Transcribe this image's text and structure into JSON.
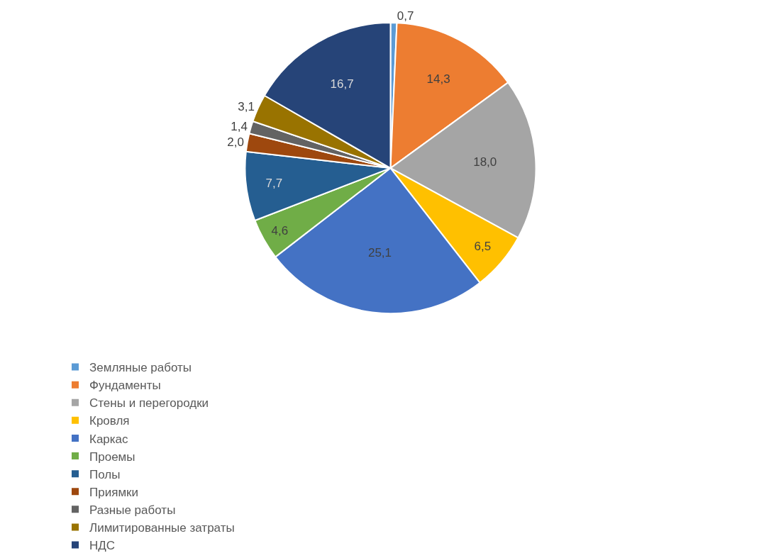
{
  "chart_data": {
    "type": "pie",
    "categories": [
      "Земляные работы",
      "Фундаменты",
      "Стены и перегородки",
      "Кровля",
      "Каркас",
      "Проемы",
      "Полы",
      "Приямки",
      "Разные работы",
      "Лимитированные затраты",
      "НДС"
    ],
    "values": [
      0.7,
      14.3,
      18.0,
      6.5,
      25.1,
      4.6,
      7.7,
      2.0,
      1.4,
      3.1,
      16.7
    ],
    "value_labels": [
      "0,7",
      "14,3",
      "18,0",
      "6,5",
      "25,1",
      "4,6",
      "7,7",
      "2,0",
      "1,4",
      "3,1",
      "16,7"
    ],
    "colors": [
      "#5b9bd5",
      "#ed7d31",
      "#a5a5a5",
      "#ffc000",
      "#4472c4",
      "#70ad47",
      "#255e91",
      "#9e480e",
      "#636363",
      "#997300",
      "#264478"
    ],
    "legend": "bottom"
  }
}
